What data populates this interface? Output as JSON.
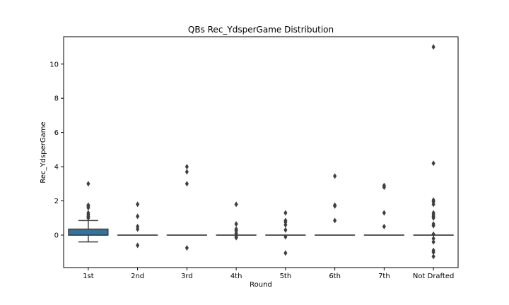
{
  "chart_data": {
    "type": "box",
    "title": "QBs Rec_YdsperGame Distribution",
    "xlabel": "Round",
    "ylabel": "Rec_YdsperGame",
    "categories": [
      "1st",
      "2nd",
      "3rd",
      "4th",
      "5th",
      "6th",
      "7th",
      "Not Drafted"
    ],
    "ylim": [
      -1.9,
      11.6
    ],
    "yticks": [
      0,
      2,
      4,
      6,
      8,
      10
    ],
    "box_color": "#3274a1",
    "line_color": "#3f3f3f",
    "boxes": [
      {
        "category": "1st",
        "q1": 0.0,
        "median": 0.0,
        "q3": 0.35,
        "whisker_low": -0.4,
        "whisker_high": 0.85,
        "outliers": [
          1.0,
          1.1,
          1.2,
          1.3,
          1.6,
          1.7,
          1.75,
          3.0
        ]
      },
      {
        "category": "2nd",
        "q1": 0.0,
        "median": 0.0,
        "q3": 0.0,
        "whisker_low": 0.0,
        "whisker_high": 0.0,
        "outliers": [
          -0.6,
          0.35,
          0.5,
          1.1,
          1.8
        ]
      },
      {
        "category": "3rd",
        "q1": 0.0,
        "median": 0.0,
        "q3": 0.0,
        "whisker_low": 0.0,
        "whisker_high": 0.0,
        "outliers": [
          -0.75,
          3.0,
          3.7,
          4.0
        ]
      },
      {
        "category": "4th",
        "q1": 0.0,
        "median": 0.0,
        "q3": 0.0,
        "whisker_low": 0.0,
        "whisker_high": 0.0,
        "outliers": [
          -0.15,
          -0.05,
          0.1,
          0.25,
          0.35,
          0.65,
          1.8
        ]
      },
      {
        "category": "5th",
        "q1": 0.0,
        "median": 0.0,
        "q3": 0.0,
        "whisker_low": 0.0,
        "whisker_high": 0.0,
        "outliers": [
          -1.05,
          -0.1,
          0.3,
          0.6,
          0.75,
          0.85,
          1.3
        ]
      },
      {
        "category": "6th",
        "q1": 0.0,
        "median": 0.0,
        "q3": 0.0,
        "whisker_low": 0.0,
        "whisker_high": 0.0,
        "outliers": [
          0.85,
          1.7,
          1.75,
          3.45
        ]
      },
      {
        "category": "7th",
        "q1": 0.0,
        "median": 0.0,
        "q3": 0.0,
        "whisker_low": 0.0,
        "whisker_high": 0.0,
        "outliers": [
          0.5,
          1.3,
          2.8,
          2.9
        ]
      },
      {
        "category": "Not Drafted",
        "q1": 0.0,
        "median": 0.0,
        "q3": 0.0,
        "whisker_low": 0.0,
        "whisker_high": 0.0,
        "outliers": [
          -1.25,
          -1.0,
          -0.9,
          -0.4,
          -0.2,
          0.05,
          0.55,
          0.65,
          1.0,
          1.1,
          1.2,
          1.3,
          1.8,
          1.95,
          2.05,
          4.2,
          11.0
        ]
      }
    ]
  }
}
